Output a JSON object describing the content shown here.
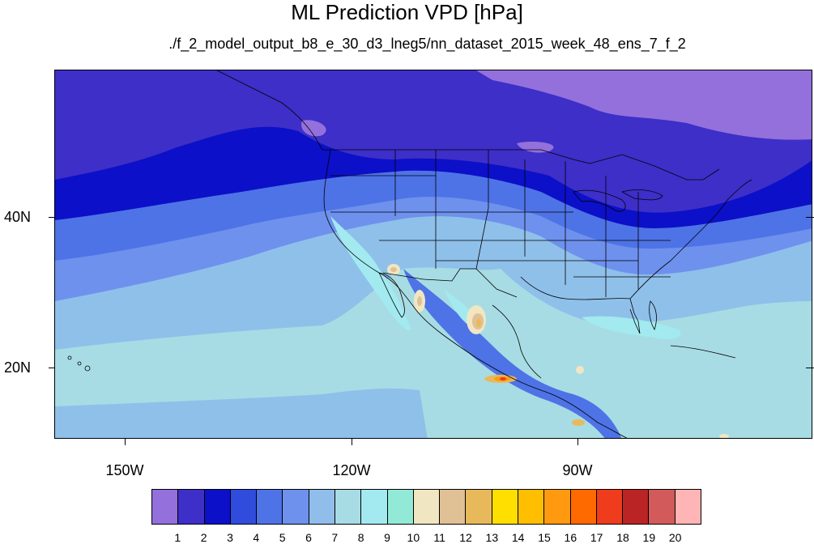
{
  "title": "ML Prediction VPD [hPa]",
  "subtitle": "./f_2_model_output_b8_e_30_d3_lneg5/nn_dataset_2015_week_48_ens_7_f_2",
  "lat_labels": [
    "40N",
    "20N"
  ],
  "lon_labels": [
    "150W",
    "120W",
    "90W"
  ],
  "colorbar": {
    "levels": [
      "1",
      "2",
      "3",
      "4",
      "5",
      "6",
      "7",
      "8",
      "9",
      "10",
      "11",
      "12",
      "13",
      "14",
      "15",
      "16",
      "17",
      "18",
      "19",
      "20"
    ],
    "colors": [
      "#9370db",
      "#3d2fc8",
      "#0c10c8",
      "#2f4cdc",
      "#4e73e6",
      "#6e91ee",
      "#90bdea",
      "#a8dce4",
      "#a2eaf0",
      "#92e9d6",
      "#f0e6c2",
      "#e0c095",
      "#e8b95a",
      "#ffdf00",
      "#ffbe00",
      "#ff9a10",
      "#ff6a00",
      "#ee3c1c",
      "#bb2424",
      "#d25a5a",
      "#ffb5b5"
    ]
  },
  "map": {
    "projection": "cylindrical equidistant",
    "lon_range": [
      -160,
      -60
    ],
    "lat_range": [
      10,
      59
    ],
    "features": "filled VPD contours, coastlines, US state and national borders"
  }
}
